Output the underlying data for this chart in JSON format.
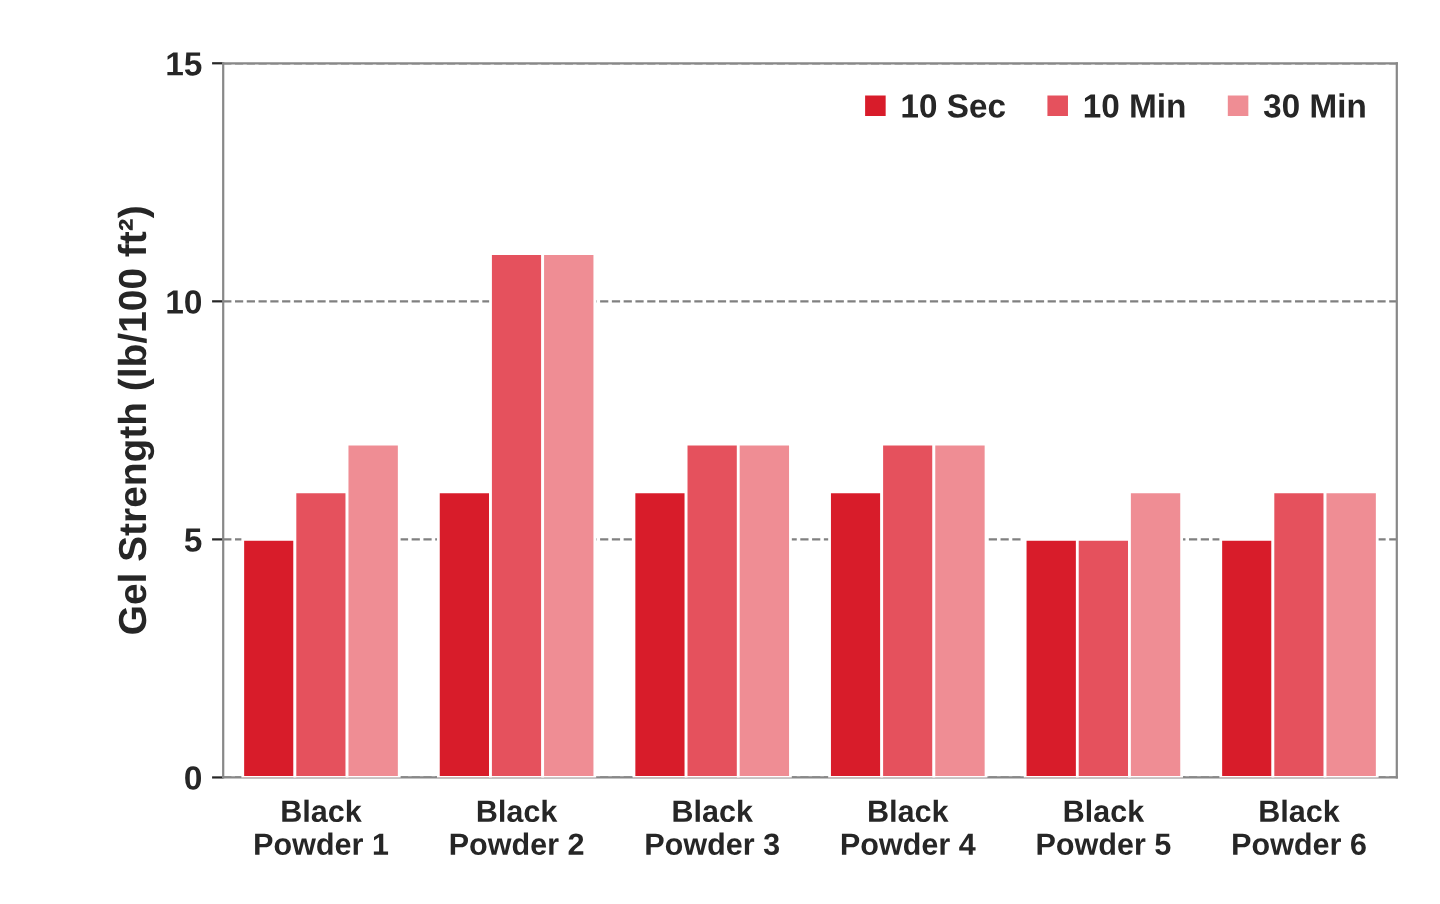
{
  "chart_data": {
    "type": "bar",
    "ylabel": "Gel Strength (lb/100 ft²)",
    "categories": [
      "Black\nPowder 1",
      "Black\nPowder 2",
      "Black\nPowder 3",
      "Black\nPowder 4",
      "Black\nPowder 5",
      "Black\nPowder 6"
    ],
    "series": [
      {
        "name": "10 Sec",
        "color": "#d81c2a",
        "values": [
          5,
          6,
          6,
          6,
          5,
          5
        ]
      },
      {
        "name": "10 Min",
        "color": "#e5515d",
        "values": [
          6,
          11,
          7,
          7,
          5,
          6
        ]
      },
      {
        "name": "30 Min",
        "color": "#ef8d94",
        "values": [
          7,
          11,
          7,
          7,
          6,
          6
        ]
      }
    ],
    "ylim": [
      0,
      15
    ],
    "yticks": [
      0,
      5,
      10,
      15
    ],
    "grid": "y",
    "legend": "top right"
  }
}
